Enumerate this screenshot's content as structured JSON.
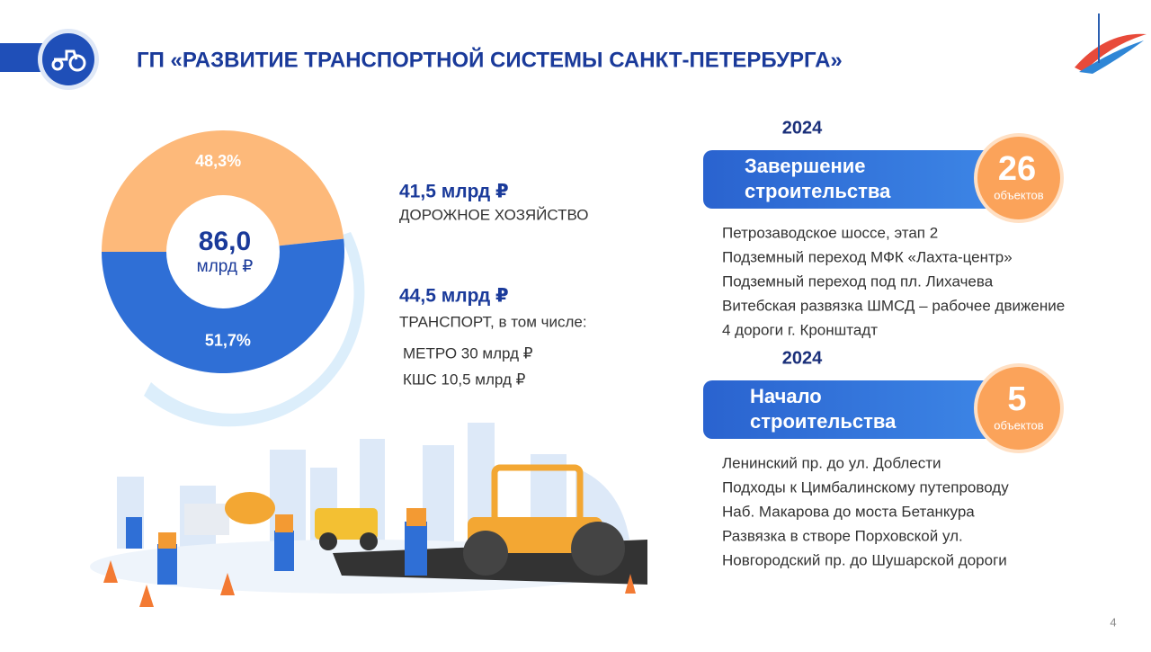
{
  "header": {
    "title": "ГП «РАЗВИТИЕ ТРАНСПОРТНОЙ СИСТЕМЫ САНКТ-ПЕТЕРБУРГА»"
  },
  "chart_data": {
    "type": "pie",
    "values": [
      48.3,
      51.7
    ],
    "value_labels": [
      "48,3%",
      "51,7%"
    ],
    "colors": [
      "#fdb97a",
      "#2f6fd6"
    ],
    "center_value": "86,0",
    "center_unit": "млрд ₽"
  },
  "legend": [
    {
      "amount": "41,5 млрд ₽",
      "label": "ДОРОЖНОЕ ХОЗЯЙСТВО"
    },
    {
      "amount": "44,5 млрд ₽",
      "label": "ТРАНСПОРТ, в том числе:",
      "sub": [
        "МЕТРО 30 млрд ₽",
        "КШС 10,5 млрд ₽"
      ]
    }
  ],
  "sections": [
    {
      "year": "2024",
      "title": [
        "Завершение",
        "строительства"
      ],
      "count": 26,
      "unit": "объектов",
      "items": [
        "Петрозаводское шоссе, этап 2",
        "Подземный переход МФК «Лахта-центр»",
        "Подземный переход под пл. Лихачева",
        "Витебская развязка ШМСД – рабочее движение",
        "4 дороги г. Кронштадт"
      ]
    },
    {
      "year": "2024",
      "title": [
        "Начало",
        "строительства"
      ],
      "count": 5,
      "unit": "объектов",
      "items": [
        "Ленинский пр. до ул. Доблести",
        "Подходы к Цимбалинскому путепроводу",
        "Наб. Макарова до моста Бетанкура",
        "Развязка в створе Порховской ул.",
        "Новгородский пр. до Шушарской дороги"
      ]
    }
  ],
  "page_number": "4"
}
